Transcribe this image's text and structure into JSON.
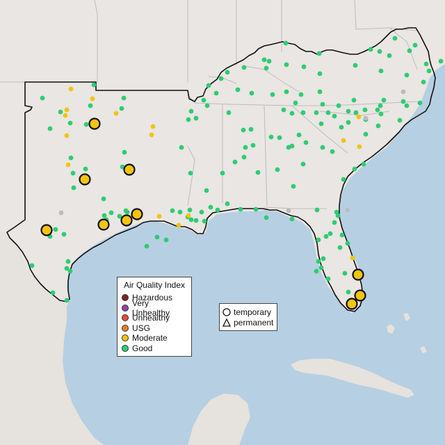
{
  "colors": {
    "water": "#b7cfe2",
    "land": "#e9e6e3",
    "land_south": "#e4e1dd",
    "border": "#111111",
    "state_line": "#bdbdbd",
    "good": "#2ecc71",
    "moderate": "#f1c40f",
    "usg": "#e67e22",
    "unhealthy": "#e74c3c",
    "very_unhealthy": "#8e44ad",
    "hazardous": "#7b241c",
    "inactive": "#bbbbbb"
  },
  "legend": {
    "title": "Air Quality Index",
    "items": [
      {
        "label": "Hazardous",
        "color": "#7b241c"
      },
      {
        "label": "Very Unhealthy",
        "color": "#8e44ad"
      },
      {
        "label": "Unhealthy",
        "color": "#e74c3c"
      },
      {
        "label": "USG",
        "color": "#e67e22"
      },
      {
        "label": "Moderate",
        "color": "#f1c40f"
      },
      {
        "label": "Good",
        "color": "#2ecc71"
      }
    ]
  },
  "monitor_type_legend": {
    "items": [
      {
        "label": "temporary",
        "icon": "circle-icon"
      },
      {
        "label": "permanent",
        "icon": "triangle-icon"
      }
    ]
  }
}
